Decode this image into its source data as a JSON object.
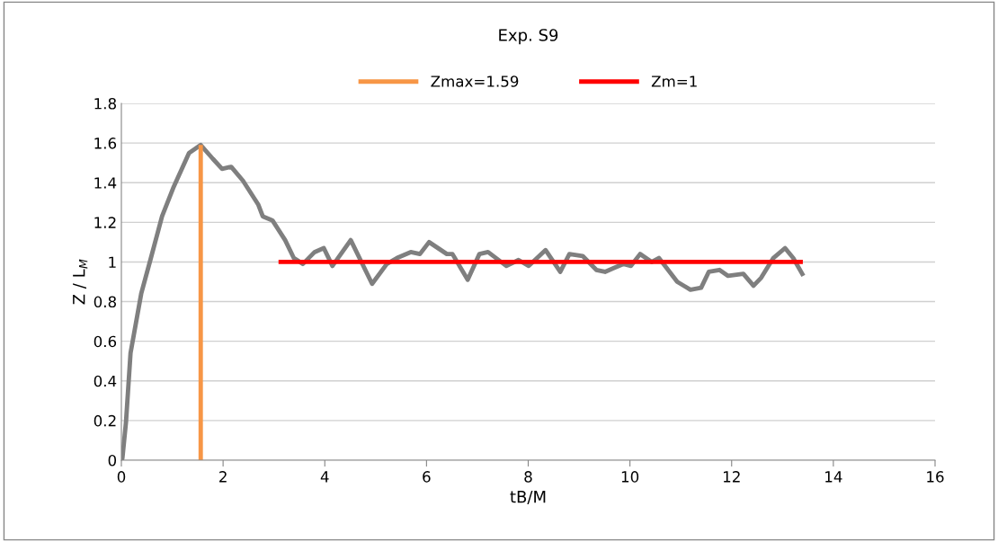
{
  "chart_data": {
    "type": "line",
    "title": "Exp. S9",
    "xlabel": "tB/M",
    "ylabel": "Z / L$_{M}$",
    "xlim": [
      0,
      16
    ],
    "xticks": [
      0,
      2,
      4,
      6,
      8,
      10,
      12,
      14,
      16
    ],
    "ylim": [
      0,
      1.8
    ],
    "yticks": [
      0,
      0.2,
      0.4,
      0.6,
      0.8,
      1,
      1.2,
      1.4,
      1.6,
      1.8
    ],
    "grid": "y",
    "legend": "top",
    "marker": "none",
    "line_style": "solid",
    "series": [
      {
        "color": "#7f7f7f",
        "x": [
          0,
          0.02,
          0.09,
          0.18,
          0.39,
          0.57,
          0.8,
          1.03,
          1.33,
          1.56,
          1.8,
          1.98,
          2.16,
          2.39,
          2.69,
          2.78,
          2.97,
          3.22,
          3.39,
          3.57,
          3.8,
          3.98,
          4.15,
          4.51,
          4.93,
          5.22,
          5.42,
          5.69,
          5.87,
          6.05,
          6.4,
          6.51,
          6.81,
          7.04,
          7.21,
          7.57,
          7.81,
          8.01,
          8.34,
          8.63,
          8.81,
          9.07,
          9.34,
          9.51,
          9.69,
          9.87,
          10.02,
          10.2,
          10.43,
          10.57,
          10.93,
          11.19,
          11.4,
          11.55,
          11.76,
          11.93,
          12.23,
          12.43,
          12.58,
          12.82,
          13.05,
          13.21,
          13.41
        ],
        "values": [
          0,
          0.01,
          0.19,
          0.54,
          0.84,
          1.01,
          1.23,
          1.38,
          1.55,
          1.59,
          1.52,
          1.47,
          1.48,
          1.41,
          1.29,
          1.23,
          1.21,
          1.11,
          1.02,
          0.99,
          1.05,
          1.07,
          0.98,
          1.11,
          0.89,
          0.99,
          1.02,
          1.05,
          1.04,
          1.1,
          1.04,
          1.04,
          0.91,
          1.04,
          1.05,
          0.98,
          1.01,
          0.98,
          1.06,
          0.95,
          1.04,
          1.03,
          0.96,
          0.95,
          0.97,
          0.99,
          0.98,
          1.04,
          1.0,
          1.02,
          0.9,
          0.86,
          0.87,
          0.95,
          0.96,
          0.93,
          0.94,
          0.88,
          0.92,
          1.02,
          1.07,
          1.02,
          0.93
        ]
      },
      {
        "name": "Zmax=1.59",
        "color": "#f79646",
        "x": [
          1.56,
          1.56
        ],
        "values": [
          0,
          1.59
        ]
      },
      {
        "name": "Zm=1",
        "color": "#ff0000",
        "x": [
          3.09,
          13.4
        ],
        "values": [
          1,
          1
        ]
      }
    ]
  }
}
